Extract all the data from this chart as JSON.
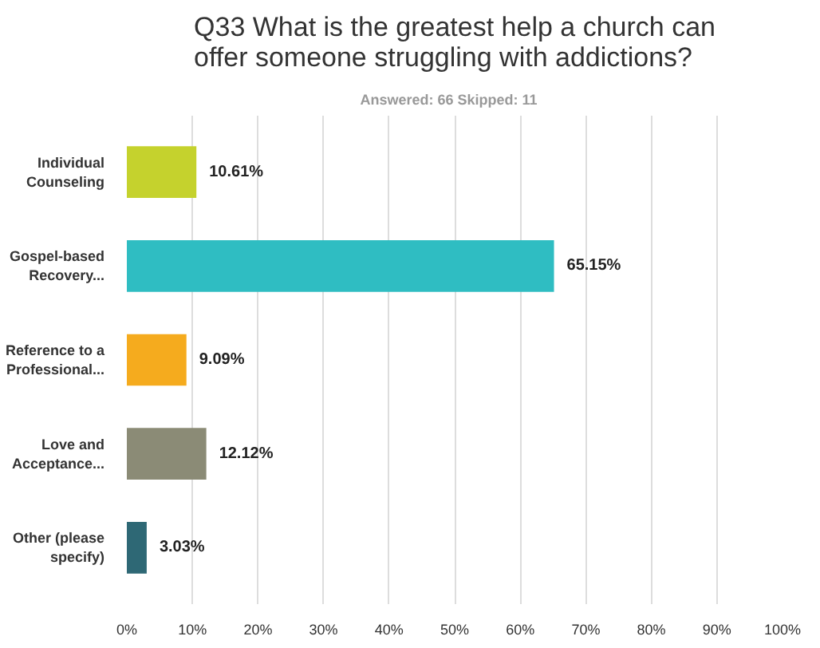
{
  "chart_data": {
    "type": "bar",
    "orientation": "horizontal",
    "title": "Q33 What is the greatest help a church can offer someone struggling with addictions?",
    "subtitle": "Answered: 66    Skipped: 11",
    "categories": [
      "Individual\nCounseling",
      "Gospel-based\nRecovery...",
      "Reference to a\nProfessional...",
      "Love and\nAcceptance...",
      "Other (please\nspecify)"
    ],
    "values": [
      10.61,
      65.15,
      9.09,
      12.12,
      3.03
    ],
    "colors": [
      "#c5d22d",
      "#2fbdc2",
      "#f5ab1e",
      "#8b8b76",
      "#2e6875"
    ],
    "value_labels": [
      "10.61%",
      "65.15%",
      "9.09%",
      "12.12%",
      "3.03%"
    ],
    "xlim": [
      0,
      100
    ],
    "xticks": [
      {
        "value": 0,
        "label": "0%"
      },
      {
        "value": 10,
        "label": "10%"
      },
      {
        "value": 20,
        "label": "20%"
      },
      {
        "value": 30,
        "label": "30%"
      },
      {
        "value": 40,
        "label": "40%"
      },
      {
        "value": 50,
        "label": "50%"
      },
      {
        "value": 60,
        "label": "60%"
      },
      {
        "value": 70,
        "label": "70%"
      },
      {
        "value": 80,
        "label": "80%"
      },
      {
        "value": 90,
        "label": "90%"
      },
      {
        "value": 100,
        "label": "100%"
      }
    ],
    "grid": "x"
  }
}
